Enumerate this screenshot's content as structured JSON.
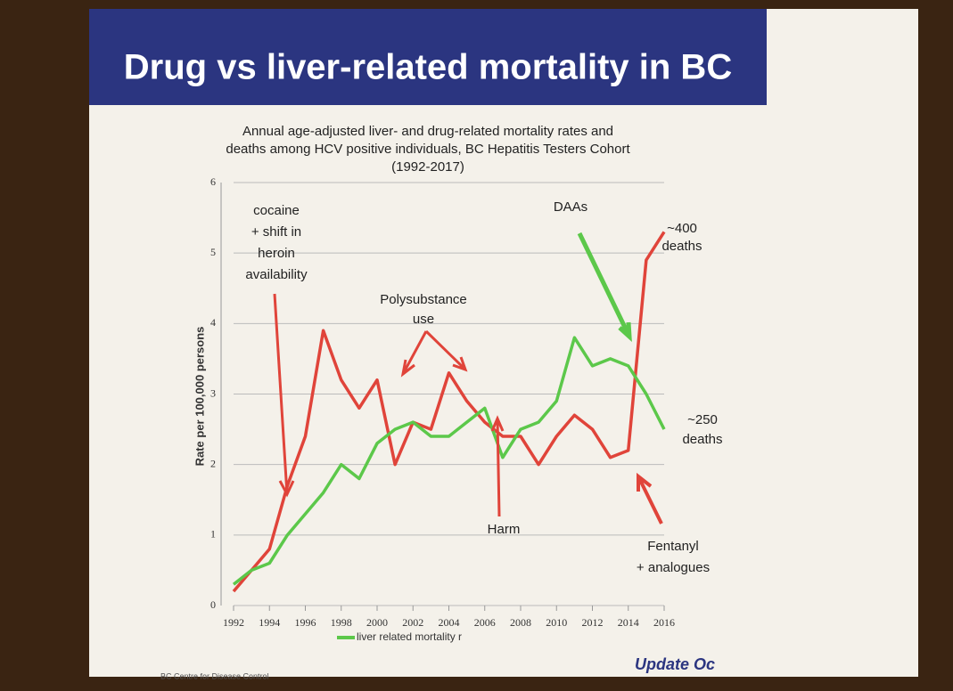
{
  "chart_data": {
    "type": "line",
    "title": "Drug vs liver-related mortality in BC",
    "subtitle": [
      "Annual age-adjusted liver- and drug-related mortality rates and",
      "deaths among HCV positive individuals, BC Hepatitis Testers Cohort",
      "(1992-2017)"
    ],
    "y_label": "Rate per 100,000 persons",
    "x": [
      1992,
      1993,
      1994,
      1995,
      1996,
      1997,
      1998,
      1999,
      2000,
      2001,
      2002,
      2003,
      2004,
      2005,
      2006,
      2007,
      2008,
      2009,
      2010,
      2011,
      2012,
      2013,
      2014,
      2015,
      2016
    ],
    "series": [
      {
        "color": "#e0443a",
        "values": [
          0.2,
          0.5,
          0.8,
          1.7,
          2.4,
          3.9,
          3.2,
          2.8,
          3.2,
          2.0,
          2.6,
          2.5,
          3.3,
          2.9,
          2.6,
          2.4,
          2.4,
          2.0,
          2.4,
          2.7,
          2.5,
          2.1,
          2.2,
          4.9,
          5.3
        ]
      },
      {
        "name": "liver related mortality r",
        "color": "#5cc84a",
        "values": [
          0.3,
          0.5,
          0.6,
          1.0,
          1.3,
          1.6,
          2.0,
          1.8,
          2.3,
          2.5,
          2.6,
          2.4,
          2.4,
          2.6,
          2.8,
          2.1,
          2.5,
          2.6,
          2.9,
          3.8,
          3.4,
          3.5,
          3.4,
          3.0,
          2.5
        ]
      }
    ],
    "xlim": [
      1992,
      2016
    ],
    "xticks": [
      1992,
      1994,
      1996,
      1998,
      2000,
      2002,
      2004,
      2006,
      2008,
      2010,
      2012,
      2014,
      2016
    ],
    "ylim": [
      0,
      6
    ],
    "yticks": [
      0,
      1,
      2,
      3,
      4,
      5,
      6
    ],
    "grid": true,
    "annotations": [
      [
        "cocaine",
        "+ shift in",
        "heroin",
        "availability"
      ],
      [
        "Polysubstance",
        "use"
      ],
      [
        "DAAs"
      ],
      [
        "~400",
        "deaths"
      ],
      [
        "~250",
        "deaths"
      ],
      [
        "Fentanyl",
        "+ analogues"
      ],
      [
        "Harm"
      ]
    ],
    "footer": [
      "BC Centre for Disease Control",
      "Update Oc"
    ]
  }
}
